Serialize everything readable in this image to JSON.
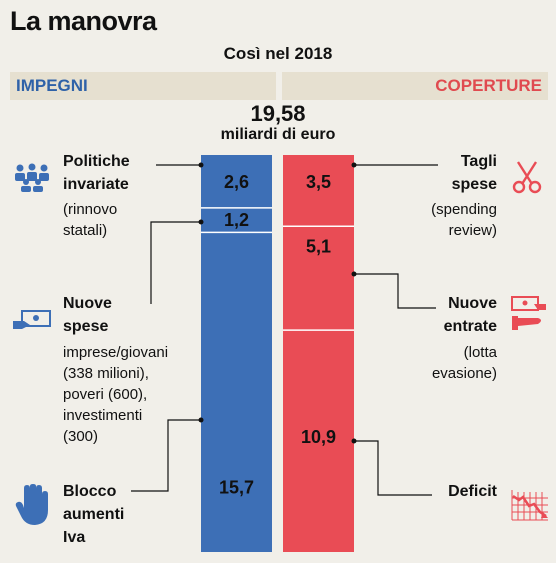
{
  "header": {
    "title": "La manovra",
    "subtitle": "Così nel 2018",
    "left_label": "IMPEGNI",
    "right_label": "COPERTURE",
    "total_value": "19,58",
    "total_unit": "miliardi di euro"
  },
  "colors": {
    "blue": "#3d6fb6",
    "red": "#e94c55",
    "bg": "#f1efe9",
    "band": "#e6e0d0"
  },
  "labels": {
    "politiche_title": "Politiche\ninvariate",
    "politiche_detail": "(rinnovo\nstatali)",
    "nuove_spese_title": "Nuove\nspese",
    "nuove_spese_detail": "imprese/giovani\n(338 milioni),\npoveri (600),\ninvestimenti\n(300)",
    "blocco_title": "Blocco\naumenti\nIva",
    "tagli_title": "Tagli\nspese",
    "tagli_detail": "(spending\nreview)",
    "nuove_entrate_title": "Nuove\nentrate",
    "nuove_entrate_detail": "(lotta\nevasione)",
    "deficit_title": "Deficit"
  },
  "icons": [
    "people-icon",
    "money-hand-icon",
    "stop-hand-icon",
    "scissors-icon",
    "money-exchange-icon",
    "declining-chart-icon"
  ],
  "chart_data": {
    "type": "bar",
    "stacked": true,
    "unit": "miliardi di euro",
    "total": 19.58,
    "series": [
      {
        "name": "IMPEGNI",
        "color": "#3d6fb6",
        "segments": [
          {
            "label": "Politiche invariate",
            "value": 2.6,
            "value_label": "2,6"
          },
          {
            "label": "Nuove spese",
            "value": 1.2,
            "value_label": "1,2"
          },
          {
            "label": "Blocco aumenti Iva",
            "value": 15.7,
            "value_label": "15,7"
          }
        ]
      },
      {
        "name": "COPERTURE",
        "color": "#e94c55",
        "segments": [
          {
            "label": "Tagli spese",
            "value": 3.5,
            "value_label": "3,5"
          },
          {
            "label": "Nuove entrate",
            "value": 5.1,
            "value_label": "5,1"
          },
          {
            "label": "Deficit",
            "value": 10.9,
            "value_label": "10,9"
          }
        ]
      }
    ]
  }
}
